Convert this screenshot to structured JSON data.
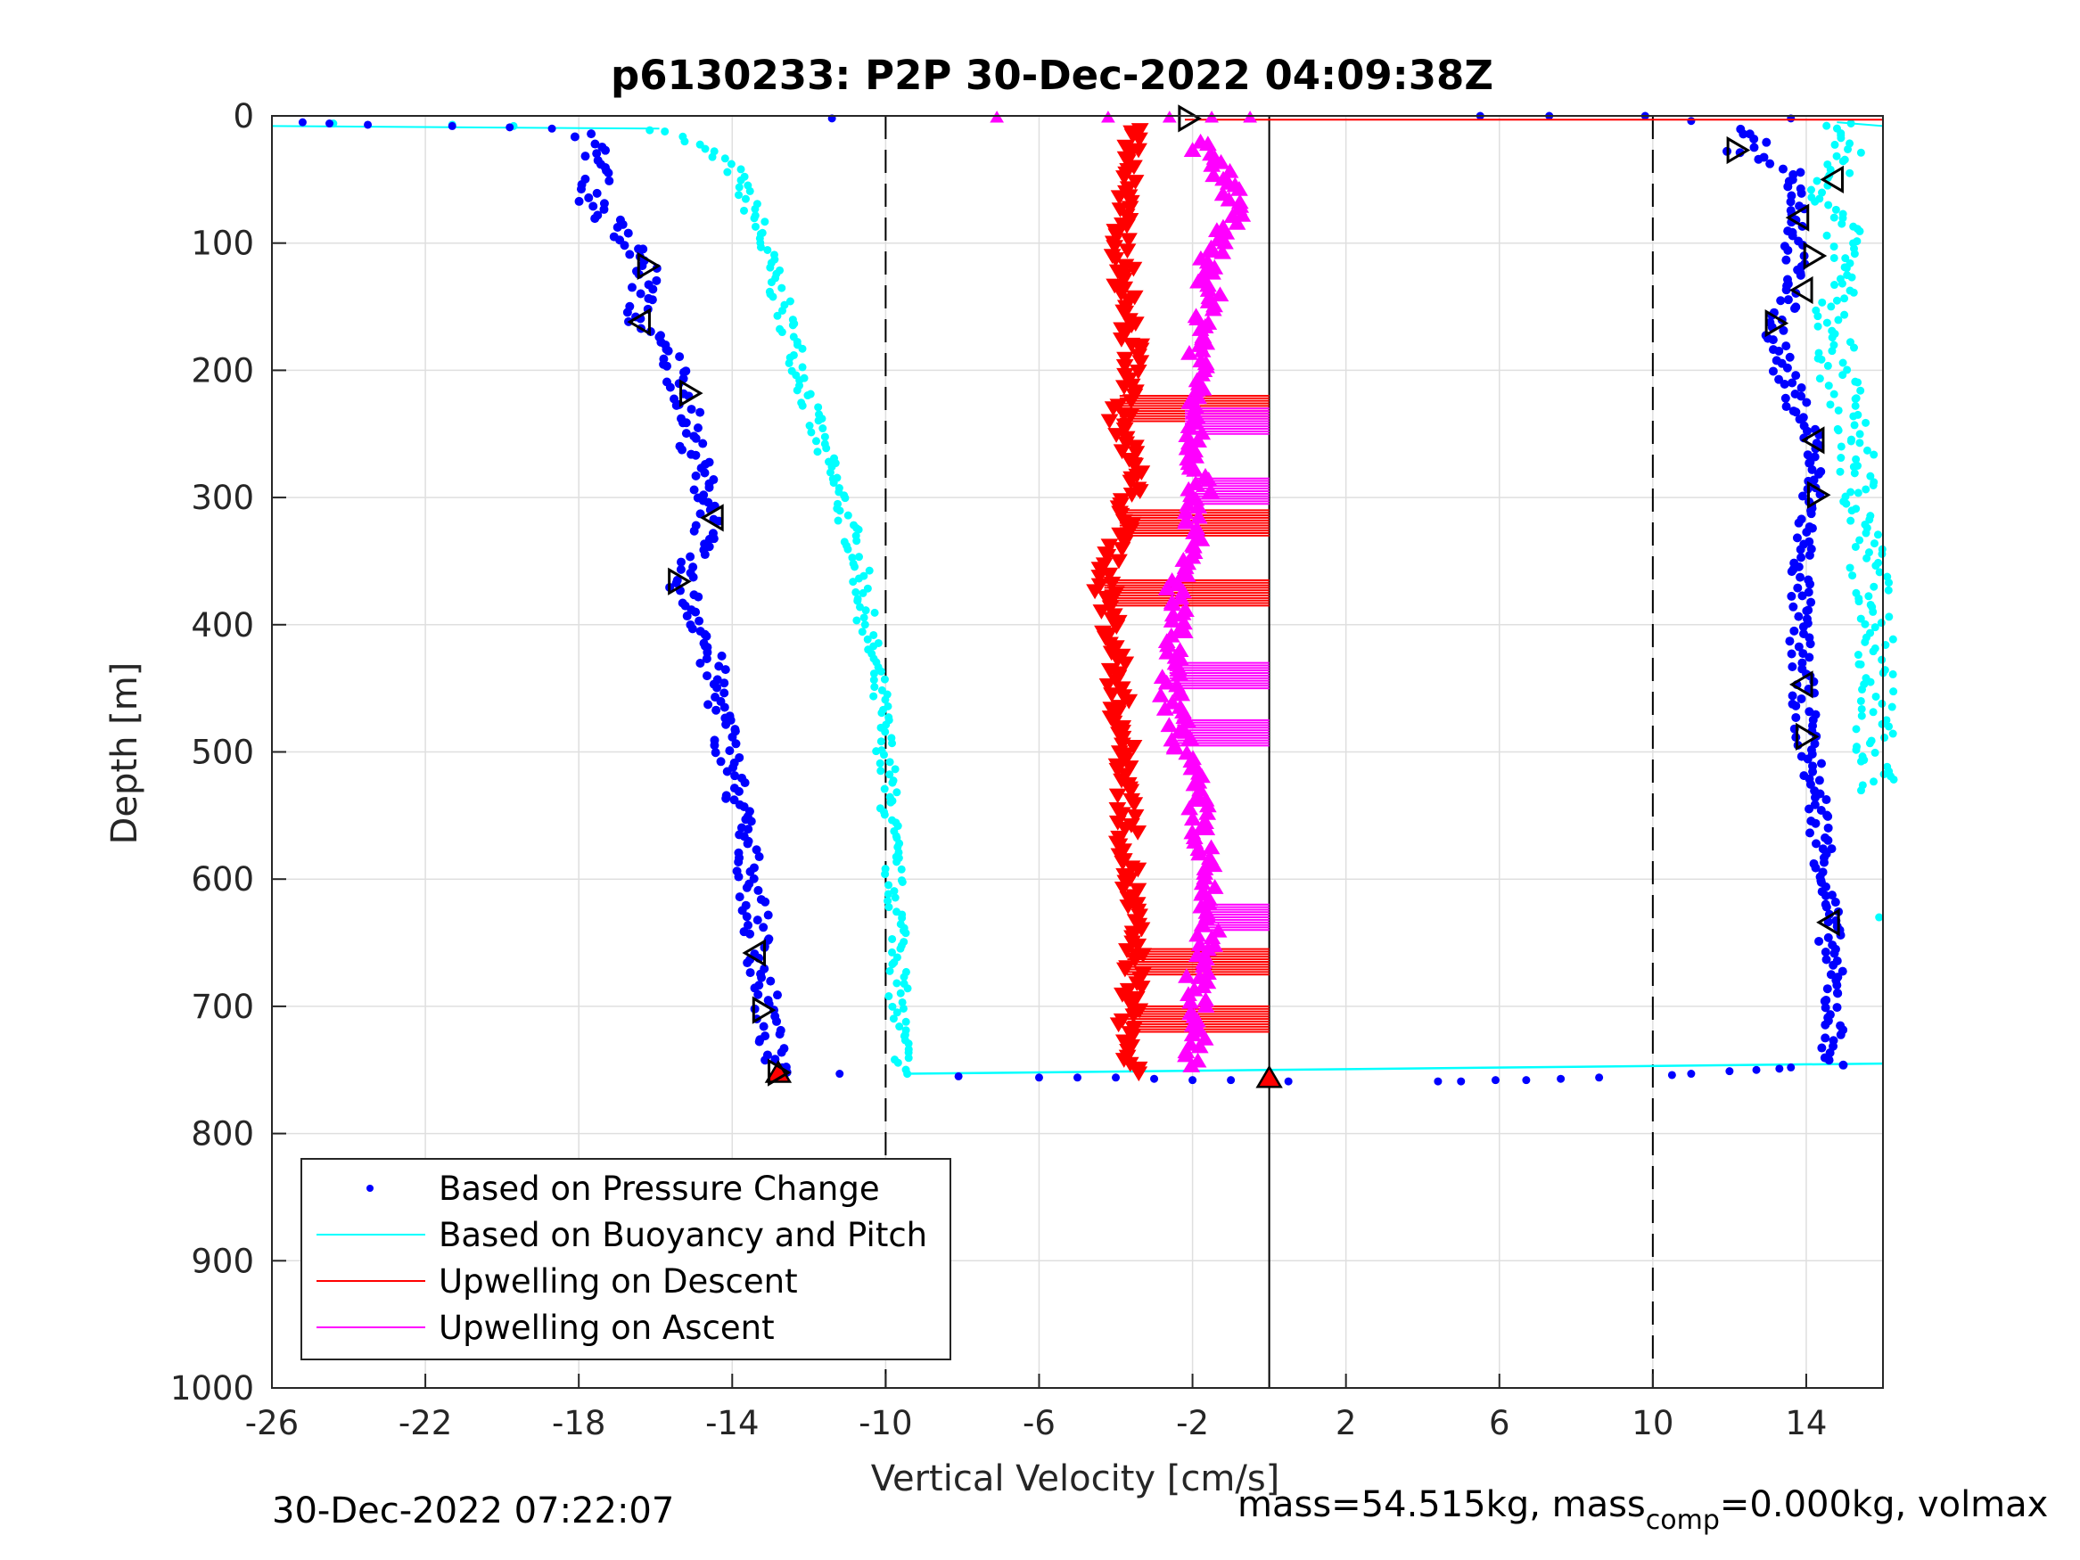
{
  "chart_data": {
    "type": "scatter",
    "title": "p6130233: P2P 30-Dec-2022 04:09:38Z",
    "xlabel": "Vertical Velocity [cm/s]",
    "ylabel": "Depth [m]",
    "xlim": [
      -26,
      16
    ],
    "ylim": [
      0,
      1000
    ],
    "y_reversed": true,
    "xticks": [
      -26,
      -22,
      -18,
      -14,
      -10,
      -6,
      -2,
      2,
      6,
      10,
      14
    ],
    "yticks": [
      0,
      100,
      200,
      300,
      400,
      500,
      600,
      700,
      800,
      900,
      1000
    ],
    "grid": true,
    "legend_position": "bottom-left",
    "reference_lines": [
      {
        "x": -10,
        "style": "dashed",
        "color": "#000000"
      },
      {
        "x": 10,
        "style": "dashed",
        "color": "#000000"
      },
      {
        "x": 0,
        "style": "solid",
        "color": "#000000"
      }
    ],
    "series": [
      {
        "name": "Based on Pressure Change",
        "marker": "dot",
        "color": "#0000ff",
        "descent": [
          [
            -17.8,
            15
          ],
          [
            -17.4,
            40
          ],
          [
            -17.7,
            65
          ],
          [
            -16.9,
            95
          ],
          [
            -16.2,
            120
          ],
          [
            -16.5,
            160
          ],
          [
            -15.6,
            190
          ],
          [
            -15.2,
            220
          ],
          [
            -15.1,
            250
          ],
          [
            -14.8,
            285
          ],
          [
            -14.5,
            315
          ],
          [
            -15.4,
            365
          ],
          [
            -14.8,
            400
          ],
          [
            -14.4,
            450
          ],
          [
            -14.1,
            500
          ],
          [
            -13.8,
            550
          ],
          [
            -13.5,
            600
          ],
          [
            -13.3,
            660
          ],
          [
            -13.1,
            705
          ],
          [
            -12.9,
            752
          ]
        ],
        "ascent": [
          [
            12.3,
            10
          ],
          [
            13.0,
            20
          ],
          [
            12.2,
            27
          ],
          [
            13.8,
            45
          ],
          [
            13.8,
            80
          ],
          [
            13.7,
            110
          ],
          [
            13.6,
            140
          ],
          [
            13.2,
            165
          ],
          [
            13.4,
            200
          ],
          [
            13.8,
            230
          ],
          [
            14.2,
            255
          ],
          [
            14.1,
            300
          ],
          [
            13.9,
            345
          ],
          [
            13.8,
            400
          ],
          [
            13.9,
            445
          ],
          [
            14.0,
            490
          ],
          [
            14.3,
            540
          ],
          [
            14.5,
            590
          ],
          [
            14.6,
            635
          ],
          [
            14.7,
            700
          ],
          [
            14.7,
            745
          ]
        ],
        "surface_points": [
          [
            -25.2,
            5
          ],
          [
            -24.5,
            6
          ],
          [
            -23.5,
            7
          ],
          [
            -21.3,
            8
          ],
          [
            -19.8,
            9
          ],
          [
            -18.7,
            10
          ],
          [
            -11.4,
            2
          ],
          [
            5.5,
            0
          ],
          [
            7.3,
            0
          ],
          [
            9.8,
            0
          ],
          [
            11.0,
            4
          ],
          [
            13.6,
            2
          ]
        ],
        "bottom_points": [
          [
            -11.2,
            753
          ],
          [
            -8.1,
            755
          ],
          [
            -6.0,
            756
          ],
          [
            -5.0,
            756
          ],
          [
            -4.0,
            756
          ],
          [
            -3.0,
            757
          ],
          [
            -2.0,
            758
          ],
          [
            -1.0,
            758
          ],
          [
            0.5,
            759
          ],
          [
            4.4,
            759
          ],
          [
            5.0,
            759
          ],
          [
            5.9,
            758
          ],
          [
            6.7,
            758
          ],
          [
            7.6,
            757
          ],
          [
            8.6,
            756
          ],
          [
            10.5,
            754
          ],
          [
            11.0,
            753
          ],
          [
            12.0,
            751
          ],
          [
            12.7,
            750
          ],
          [
            13.3,
            749
          ],
          [
            13.6,
            748
          ]
        ]
      },
      {
        "name": "Based on Buoyancy and Pitch",
        "marker": "line-dots",
        "color": "#00ffff",
        "descent": [
          [
            -26,
            8
          ],
          [
            -15.9,
            10
          ],
          [
            -15.1,
            20
          ],
          [
            -14.0,
            40
          ],
          [
            -13.4,
            80
          ],
          [
            -13.0,
            120
          ],
          [
            -12.6,
            160
          ],
          [
            -12.2,
            200
          ],
          [
            -11.8,
            250
          ],
          [
            -11.2,
            300
          ],
          [
            -10.7,
            350
          ],
          [
            -10.5,
            400
          ],
          [
            -10.2,
            450
          ],
          [
            -10.0,
            500
          ],
          [
            -9.9,
            550
          ],
          [
            -9.8,
            600
          ],
          [
            -9.6,
            650
          ],
          [
            -9.7,
            700
          ],
          [
            -9.5,
            752
          ]
        ],
        "ascent": [
          [
            14.8,
            5
          ],
          [
            15.0,
            30
          ],
          [
            14.5,
            60
          ],
          [
            15.0,
            100
          ],
          [
            14.7,
            150
          ],
          [
            14.8,
            200
          ],
          [
            15.2,
            250
          ],
          [
            15.4,
            300
          ],
          [
            15.6,
            350
          ],
          [
            15.9,
            400
          ],
          [
            15.8,
            450
          ],
          [
            15.8,
            500
          ],
          [
            15.9,
            530
          ]
        ],
        "extra_points": [
          [
            15.9,
            630
          ]
        ],
        "bottom_line": [
          [
            -9.5,
            753
          ],
          [
            16,
            745
          ]
        ],
        "surface_line": [
          [
            16,
            8
          ]
        ]
      },
      {
        "name": "Upwelling on Descent",
        "marker": "triangle-down",
        "color": "#ff0000",
        "profile": [
          [
            -3.5,
            10
          ],
          [
            -3.6,
            40
          ],
          [
            -3.9,
            80
          ],
          [
            -3.8,
            120
          ],
          [
            -3.7,
            160
          ],
          [
            -3.5,
            200
          ],
          [
            -3.9,
            240
          ],
          [
            -3.5,
            280
          ],
          [
            -3.8,
            320
          ],
          [
            -4.3,
            370
          ],
          [
            -4.0,
            420
          ],
          [
            -3.9,
            470
          ],
          [
            -3.7,
            520
          ],
          [
            -3.7,
            570
          ],
          [
            -3.6,
            620
          ],
          [
            -3.5,
            670
          ],
          [
            -3.7,
            720
          ],
          [
            -3.6,
            752
          ]
        ],
        "horizontal_bands": [
          [
            -3.9,
            0,
            230
          ],
          [
            -3.9,
            0,
            320
          ],
          [
            -4.3,
            0,
            375
          ],
          [
            -3.7,
            0,
            665
          ],
          [
            -3.7,
            0,
            710
          ]
        ],
        "surface_line": [
          [
            -2.2,
            3
          ],
          [
            16,
            3
          ]
        ]
      },
      {
        "name": "Upwelling on Ascent",
        "marker": "triangle-up",
        "color": "#ff00ff",
        "profile": [
          [
            -2.0,
            20
          ],
          [
            -1.0,
            50
          ],
          [
            -1.0,
            80
          ],
          [
            -1.5,
            110
          ],
          [
            -1.6,
            150
          ],
          [
            -1.8,
            190
          ],
          [
            -1.8,
            220
          ],
          [
            -1.9,
            250
          ],
          [
            -1.8,
            290
          ],
          [
            -2.0,
            330
          ],
          [
            -2.4,
            370
          ],
          [
            -2.5,
            410
          ],
          [
            -2.6,
            450
          ],
          [
            -2.2,
            500
          ],
          [
            -1.8,
            550
          ],
          [
            -1.7,
            600
          ],
          [
            -1.6,
            640
          ],
          [
            -1.9,
            680
          ],
          [
            -1.8,
            720
          ],
          [
            -2.0,
            745
          ]
        ],
        "horizontal_bands": [
          [
            -2.2,
            0,
            240
          ],
          [
            -1.9,
            0,
            295
          ],
          [
            -2.6,
            0,
            440
          ],
          [
            -2.4,
            0,
            485
          ],
          [
            -1.8,
            0,
            630
          ]
        ],
        "surface_line": [
          [
            -7.1,
            0
          ],
          [
            0,
            0
          ]
        ]
      }
    ],
    "annotations": {
      "hollow_triangles": [
        {
          "x": -2.1,
          "y": 2,
          "dir": "right"
        },
        {
          "x": -16.2,
          "y": 118,
          "dir": "right"
        },
        {
          "x": -16.4,
          "y": 162,
          "dir": "left"
        },
        {
          "x": -15.1,
          "y": 218,
          "dir": "right"
        },
        {
          "x": -14.5,
          "y": 316,
          "dir": "left"
        },
        {
          "x": -15.4,
          "y": 366,
          "dir": "right"
        },
        {
          "x": -13.4,
          "y": 658,
          "dir": "left"
        },
        {
          "x": -13.2,
          "y": 703,
          "dir": "right"
        },
        {
          "x": -12.8,
          "y": 752,
          "dir": "right"
        },
        {
          "x": 12.2,
          "y": 27,
          "dir": "right"
        },
        {
          "x": 14.7,
          "y": 50,
          "dir": "left"
        },
        {
          "x": 13.8,
          "y": 80,
          "dir": "left"
        },
        {
          "x": 14.2,
          "y": 110,
          "dir": "right"
        },
        {
          "x": 13.9,
          "y": 137,
          "dir": "left"
        },
        {
          "x": 13.2,
          "y": 163,
          "dir": "right"
        },
        {
          "x": 14.2,
          "y": 255,
          "dir": "left"
        },
        {
          "x": 14.3,
          "y": 298,
          "dir": "right"
        },
        {
          "x": 13.9,
          "y": 447,
          "dir": "left"
        },
        {
          "x": 14.0,
          "y": 488,
          "dir": "right"
        },
        {
          "x": 14.6,
          "y": 634,
          "dir": "left"
        }
      ],
      "filled_triangles": [
        {
          "x": -12.8,
          "y": 752,
          "dir": "up",
          "color": "#ff0000"
        },
        {
          "x": 0.0,
          "y": 756,
          "dir": "up",
          "color": "#ff0000"
        }
      ]
    }
  },
  "footer": {
    "left": "30-Dec-2022 07:22:07",
    "right_pre": "mass=54.515kg, mass",
    "right_sub": "comp",
    "right_post": "=0.000kg, volmax"
  }
}
